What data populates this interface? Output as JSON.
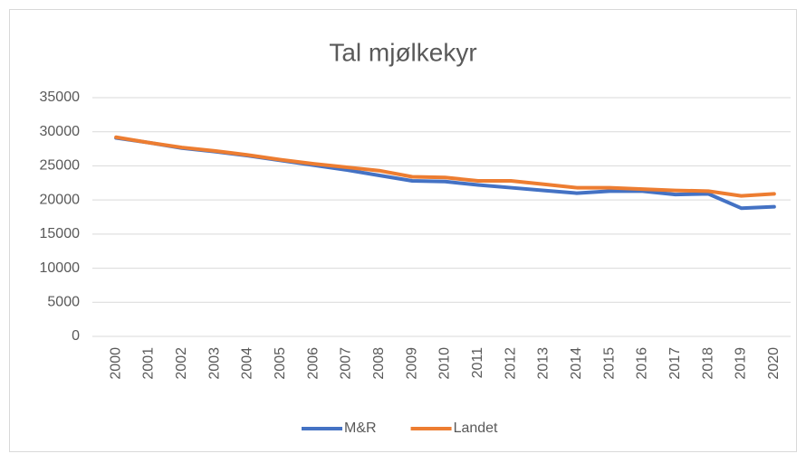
{
  "chart_data": {
    "type": "line",
    "title": "Tal mjølkekyr",
    "categories": [
      "2000",
      "2001",
      "2002",
      "2003",
      "2004",
      "2005",
      "2006",
      "2007",
      "2008",
      "2009",
      "2010",
      "2011",
      "2012",
      "2013",
      "2014",
      "2015",
      "2016",
      "2017",
      "2018",
      "2019",
      "2020"
    ],
    "series": [
      {
        "name": "M&R",
        "color": "#4472c4",
        "values": [
          29100,
          28400,
          27600,
          27100,
          26500,
          25800,
          25100,
          24400,
          23600,
          22800,
          22700,
          22200,
          21800,
          21400,
          21000,
          21300,
          21300,
          20800,
          20900,
          18800,
          19000
        ]
      },
      {
        "name": "Landet",
        "color": "#ed7d31",
        "values": [
          29200,
          28400,
          27700,
          27200,
          26600,
          25900,
          25300,
          24800,
          24300,
          23400,
          23300,
          22800,
          22800,
          22300,
          21800,
          21800,
          21600,
          21400,
          21300,
          20600,
          20900
        ]
      }
    ],
    "ylim": [
      0,
      35000
    ],
    "yticks": [
      0,
      5000,
      10000,
      15000,
      20000,
      25000,
      30000,
      35000
    ],
    "grid": true,
    "legend": "bottom"
  }
}
